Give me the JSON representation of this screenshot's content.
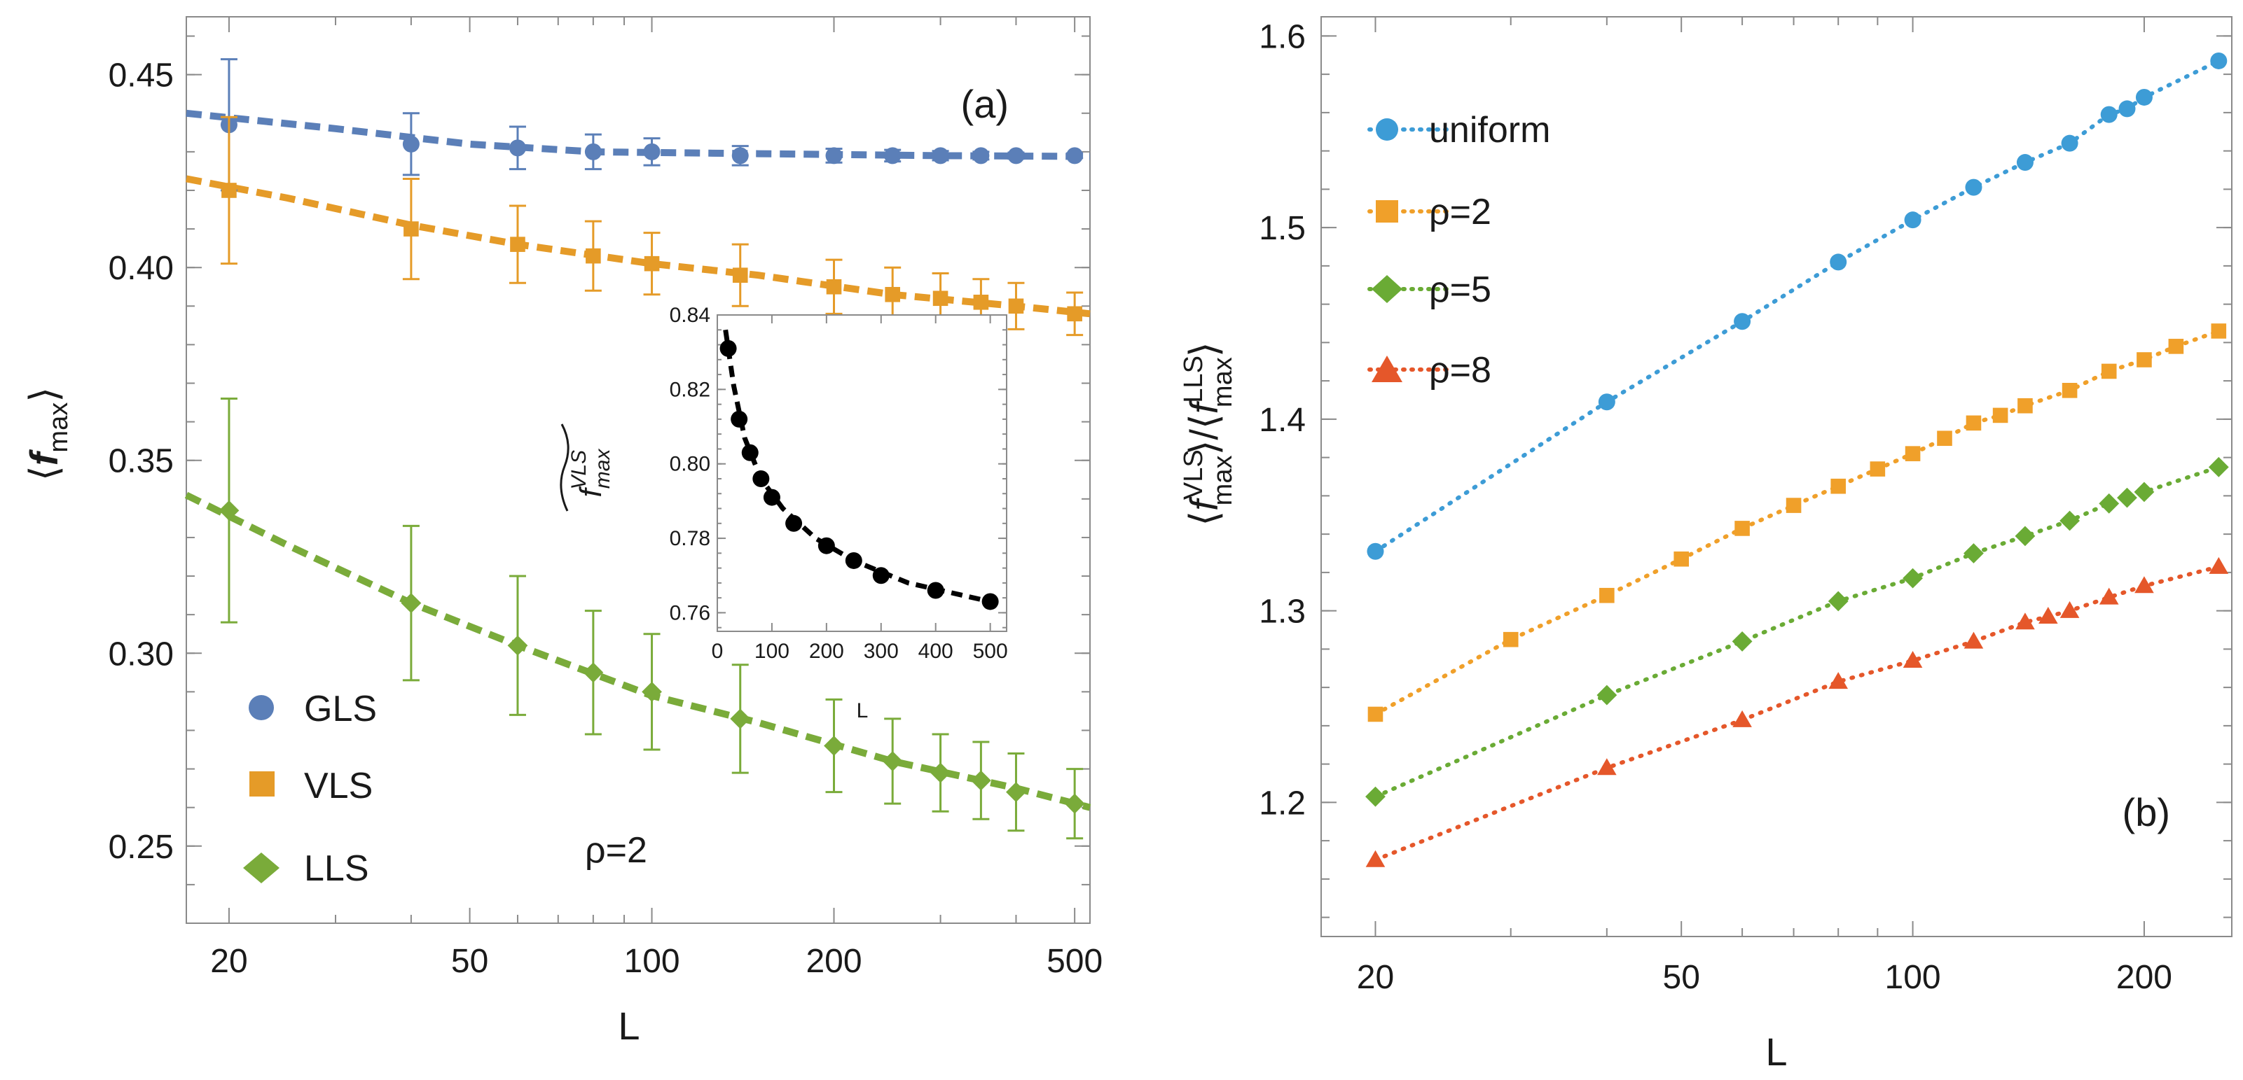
{
  "chart_data": [
    {
      "id": "a",
      "type": "scatter",
      "panel_label": "(a)",
      "xlabel": "L",
      "ylabel": "⟨fmax⟩",
      "xscale": "log",
      "xlim": [
        17,
        530
      ],
      "ylim": [
        0.23,
        0.465
      ],
      "xticks": [
        20,
        50,
        100,
        200,
        500
      ],
      "yticks": [
        0.25,
        0.3,
        0.35,
        0.4,
        0.45
      ],
      "annotation": "ρ=2",
      "legend_position": "bottom-left",
      "series": [
        {
          "name": "GLS",
          "marker": "circle",
          "color": "#5b7fb8",
          "x": [
            20,
            40,
            60,
            80,
            100,
            140,
            200,
            250,
            300,
            350,
            400,
            500
          ],
          "y": [
            0.437,
            0.432,
            0.431,
            0.43,
            0.43,
            0.429,
            0.429,
            0.429,
            0.429,
            0.429,
            0.429,
            0.429
          ],
          "err": [
            0.017,
            0.008,
            0.0055,
            0.0045,
            0.0035,
            0.0025,
            0.0018,
            0.0015,
            0.0012,
            0.001,
            0.0008,
            0.0006
          ],
          "fit": [
            [
              17,
              0.44
            ],
            [
              30,
              0.436
            ],
            [
              50,
              0.432
            ],
            [
              80,
              0.43
            ],
            [
              150,
              0.4295
            ],
            [
              300,
              0.429
            ],
            [
              530,
              0.4288
            ]
          ]
        },
        {
          "name": "VLS",
          "marker": "square",
          "color": "#e59b28",
          "x": [
            20,
            40,
            60,
            80,
            100,
            140,
            200,
            250,
            300,
            350,
            400,
            500
          ],
          "y": [
            0.42,
            0.41,
            0.406,
            0.403,
            0.401,
            0.398,
            0.395,
            0.393,
            0.392,
            0.391,
            0.39,
            0.388
          ],
          "err": [
            0.019,
            0.013,
            0.01,
            0.009,
            0.008,
            0.008,
            0.007,
            0.007,
            0.0065,
            0.006,
            0.006,
            0.0055
          ],
          "fit": [
            [
              17,
              0.423
            ],
            [
              25,
              0.418
            ],
            [
              40,
              0.411
            ],
            [
              60,
              0.406
            ],
            [
              100,
              0.401
            ],
            [
              150,
              0.398
            ],
            [
              250,
              0.393
            ],
            [
              400,
              0.39
            ],
            [
              530,
              0.388
            ]
          ]
        },
        {
          "name": "LLS",
          "marker": "diamond",
          "color": "#7aab3a",
          "x": [
            20,
            40,
            60,
            80,
            100,
            140,
            200,
            250,
            300,
            350,
            400,
            500
          ],
          "y": [
            0.337,
            0.313,
            0.302,
            0.295,
            0.29,
            0.283,
            0.276,
            0.272,
            0.269,
            0.267,
            0.264,
            0.261
          ],
          "err": [
            0.029,
            0.02,
            0.018,
            0.016,
            0.015,
            0.014,
            0.012,
            0.011,
            0.01,
            0.01,
            0.01,
            0.009
          ],
          "fit": [
            [
              17,
              0.341
            ],
            [
              25,
              0.328
            ],
            [
              40,
              0.313
            ],
            [
              60,
              0.302
            ],
            [
              100,
              0.289
            ],
            [
              150,
              0.282
            ],
            [
              250,
              0.272
            ],
            [
              400,
              0.265
            ],
            [
              530,
              0.26
            ]
          ]
        }
      ]
    },
    {
      "id": "a-inset",
      "type": "scatter",
      "xlabel": "L",
      "ylabel": "f̃max^VLS",
      "ylabel_base": "f",
      "ylabel_sub": "max",
      "ylabel_sup": "VLS",
      "xlim": [
        0,
        530
      ],
      "ylim": [
        0.755,
        0.84
      ],
      "xticks": [
        0,
        100,
        200,
        300,
        400,
        500
      ],
      "yticks": [
        0.76,
        0.78,
        0.8,
        0.82,
        0.84
      ],
      "series": [
        {
          "name": "inset",
          "marker": "circle",
          "color": "#000000",
          "x": [
            20,
            40,
            60,
            80,
            100,
            140,
            200,
            250,
            300,
            400,
            500
          ],
          "y": [
            0.831,
            0.812,
            0.803,
            0.796,
            0.791,
            0.784,
            0.778,
            0.774,
            0.77,
            0.766,
            0.763
          ],
          "fit": [
            [
              15,
              0.836
            ],
            [
              30,
              0.821
            ],
            [
              50,
              0.807
            ],
            [
              80,
              0.796
            ],
            [
              120,
              0.788
            ],
            [
              180,
              0.78
            ],
            [
              250,
              0.774
            ],
            [
              350,
              0.768
            ],
            [
              500,
              0.763
            ]
          ]
        }
      ]
    },
    {
      "id": "b",
      "type": "line",
      "panel_label": "(b)",
      "xlabel": "L",
      "ylabel": "⟨fmax^VLS⟩/⟨fmax^LLS⟩",
      "ylabel_sub": "max",
      "ylabel_sup1": "VLS",
      "ylabel_sup2": "LLS",
      "xscale": "log",
      "xlim": [
        17,
        260
      ],
      "ylim": [
        1.13,
        1.61
      ],
      "xticks": [
        20,
        50,
        100,
        200
      ],
      "yticks": [
        1.2,
        1.3,
        1.4,
        1.5,
        1.6
      ],
      "legend_position": "top-left",
      "series": [
        {
          "name": "uniform",
          "marker": "circle",
          "color": "#3d9cd6",
          "x": [
            20,
            40,
            60,
            80,
            100,
            120,
            140,
            160,
            180,
            190,
            200,
            250
          ],
          "y": [
            1.331,
            1.409,
            1.451,
            1.482,
            1.504,
            1.521,
            1.534,
            1.544,
            1.559,
            1.562,
            1.568,
            1.587
          ]
        },
        {
          "name": "ρ=2",
          "marker": "square",
          "color": "#f0a02a",
          "x": [
            20,
            30,
            40,
            50,
            60,
            70,
            80,
            90,
            100,
            110,
            120,
            130,
            140,
            160,
            180,
            200,
            220,
            250
          ],
          "y": [
            1.246,
            1.285,
            1.308,
            1.327,
            1.343,
            1.355,
            1.365,
            1.374,
            1.382,
            1.39,
            1.398,
            1.402,
            1.407,
            1.415,
            1.425,
            1.431,
            1.438,
            1.446
          ]
        },
        {
          "name": "ρ=5",
          "marker": "diamond",
          "color": "#6aab35",
          "x": [
            20,
            40,
            60,
            80,
            100,
            120,
            140,
            160,
            180,
            190,
            200,
            250
          ],
          "y": [
            1.203,
            1.256,
            1.284,
            1.305,
            1.317,
            1.33,
            1.339,
            1.347,
            1.356,
            1.359,
            1.362,
            1.375
          ]
        },
        {
          "name": "ρ=8",
          "marker": "triangle",
          "color": "#e5572a",
          "x": [
            20,
            40,
            60,
            80,
            100,
            120,
            140,
            150,
            160,
            180,
            200,
            250
          ],
          "y": [
            1.17,
            1.218,
            1.243,
            1.263,
            1.274,
            1.284,
            1.294,
            1.297,
            1.3,
            1.307,
            1.313,
            1.323
          ]
        }
      ]
    }
  ]
}
